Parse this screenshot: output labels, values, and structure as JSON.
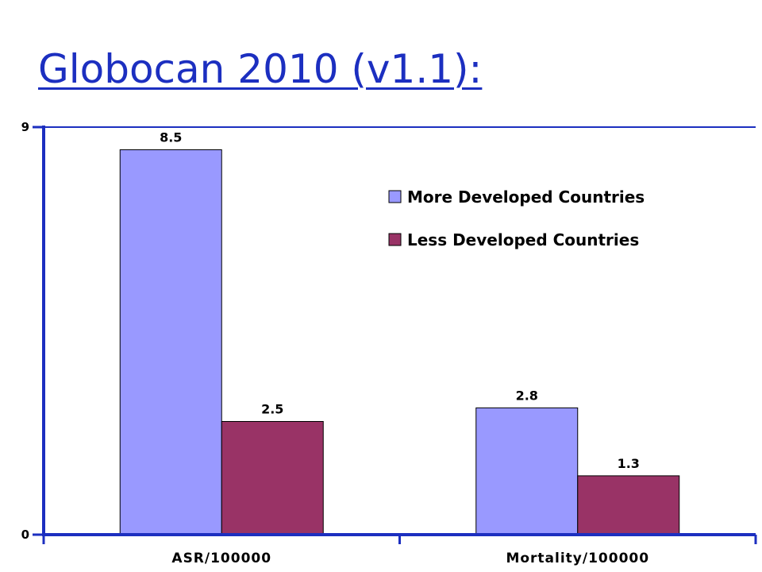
{
  "slide": {
    "title": "Globocan 2010 (v1.1):"
  },
  "chart_data": {
    "type": "bar",
    "categories": [
      "ASR/100000",
      "Mortality/100000"
    ],
    "series": [
      {
        "name": "More Developed Countries",
        "values": [
          8.5,
          2.8
        ],
        "color": "#9999ff"
      },
      {
        "name": "Less Developed Countries",
        "values": [
          2.5,
          1.3
        ],
        "color": "#993366"
      }
    ],
    "data_labels": [
      [
        "8.5",
        "2.8"
      ],
      [
        "2.5",
        "1.3"
      ]
    ],
    "ylim": [
      0,
      9
    ],
    "yticks": [
      "0",
      "9"
    ],
    "axis_color": "#1c2fc0",
    "gridlines": true,
    "legend_position": "top-right"
  }
}
